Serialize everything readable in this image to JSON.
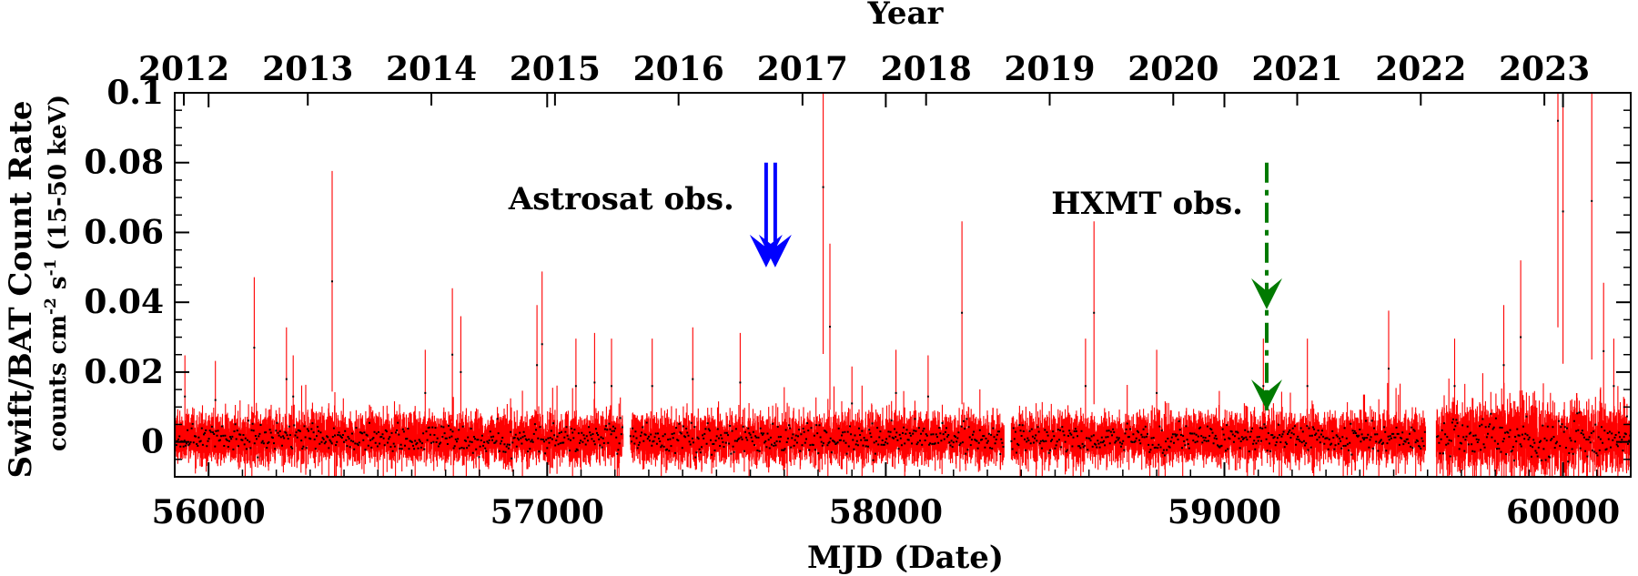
{
  "chart_data": {
    "type": "scatter",
    "title": "",
    "xlabel": "MJD (Date)",
    "x2label": "Year",
    "ylabel_line1": "Swift/BAT Count Rate",
    "ylabel_line2": {
      "a": "counts cm",
      "a_sup": "-2",
      "b": " s",
      "b_sup": "-1",
      "c": " (15-50 keV)"
    },
    "xlim": [
      55900,
      60200
    ],
    "ylim": [
      -0.01,
      0.1
    ],
    "x_ticks": [
      {
        "value": 56000,
        "label": "56000"
      },
      {
        "value": 57000,
        "label": "57000"
      },
      {
        "value": 58000,
        "label": "58000"
      },
      {
        "value": 59000,
        "label": "59000"
      },
      {
        "value": 60000,
        "label": "60000"
      }
    ],
    "y_ticks": [
      {
        "value": 0,
        "label": "0"
      },
      {
        "value": 0.02,
        "label": "0.02"
      },
      {
        "value": 0.04,
        "label": "0.04"
      },
      {
        "value": 0.06,
        "label": "0.06"
      },
      {
        "value": 0.08,
        "label": "0.08"
      },
      {
        "value": 0.1,
        "label": "0.1"
      }
    ],
    "year_ticks": [
      {
        "mjd": 55927,
        "label": "2012"
      },
      {
        "mjd": 56293,
        "label": "2013"
      },
      {
        "mjd": 56658,
        "label": "2014"
      },
      {
        "mjd": 57023,
        "label": "2015"
      },
      {
        "mjd": 57388,
        "label": "2016"
      },
      {
        "mjd": 57754,
        "label": "2017"
      },
      {
        "mjd": 58119,
        "label": "2018"
      },
      {
        "mjd": 58484,
        "label": "2019"
      },
      {
        "mjd": 58849,
        "label": "2020"
      },
      {
        "mjd": 59215,
        "label": "2021"
      },
      {
        "mjd": 59580,
        "label": "2022"
      },
      {
        "mjd": 59945,
        "label": "2023"
      }
    ],
    "series": [
      {
        "color": "#ff0000",
        "point_color": "#000000",
        "baseline": 0.001,
        "scatter": 0.0035,
        "mjd_start": 55900,
        "mjd_end": 60200,
        "gaps": [
          [
            57225,
            57245
          ],
          [
            58350,
            58370
          ],
          [
            59595,
            59625
          ]
        ],
        "flares": [
          [
            55930,
            0.013
          ],
          [
            56020,
            0.012
          ],
          [
            56135,
            0.027
          ],
          [
            56230,
            0.018
          ],
          [
            56250,
            0.013
          ],
          [
            56365,
            0.046
          ],
          [
            56640,
            0.014
          ],
          [
            56720,
            0.025
          ],
          [
            56745,
            0.02
          ],
          [
            56970,
            0.022
          ],
          [
            56985,
            0.028
          ],
          [
            57085,
            0.016
          ],
          [
            57140,
            0.017
          ],
          [
            57190,
            0.016
          ],
          [
            57310,
            0.016
          ],
          [
            57430,
            0.018
          ],
          [
            57570,
            0.017
          ],
          [
            57815,
            0.073
          ],
          [
            57835,
            0.033
          ],
          [
            57900,
            0.011
          ],
          [
            58030,
            0.014
          ],
          [
            58125,
            0.013
          ],
          [
            58225,
            0.037
          ],
          [
            58360,
            0.016
          ],
          [
            58590,
            0.016
          ],
          [
            58615,
            0.037
          ],
          [
            58800,
            0.014
          ],
          [
            59115,
            0.016
          ],
          [
            59245,
            0.016
          ],
          [
            59485,
            0.021
          ],
          [
            59680,
            0.016
          ],
          [
            59825,
            0.022
          ],
          [
            59875,
            0.03
          ],
          [
            59985,
            0.092
          ],
          [
            60000,
            0.066
          ],
          [
            60085,
            0.069
          ],
          [
            60120,
            0.026
          ],
          [
            60150,
            0.016
          ]
        ]
      }
    ],
    "annotations": [
      {
        "text": "Astrosat obs.",
        "color": "#0000ff",
        "mjd": 57660,
        "y_from": 0.08,
        "y_to": 0.05,
        "style": "double-solid"
      },
      {
        "text": "HXMT obs.",
        "color": "#007a00",
        "mjd": 59125,
        "y_from": 0.08,
        "y_to": 0.009,
        "style": "dash-dot"
      }
    ]
  }
}
